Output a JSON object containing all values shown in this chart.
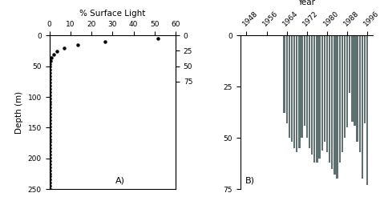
{
  "title_left": "% Surface Light",
  "title_right": "Year",
  "ylabel_left": "Depth (m)",
  "label_A": "A)",
  "label_B": "B)",
  "left_xlim": [
    0,
    60
  ],
  "left_ylim": [
    250,
    0
  ],
  "left_xticks": [
    0,
    10,
    20,
    30,
    40,
    50,
    60
  ],
  "left_yticks": [
    0,
    50,
    100,
    150,
    200,
    250
  ],
  "right_yticks_left": [
    0,
    25,
    50,
    75
  ],
  "bar_color": "#5f7070",
  "years": [
    1963,
    1964,
    1965,
    1966,
    1967,
    1968,
    1969,
    1970,
    1971,
    1972,
    1973,
    1974,
    1975,
    1976,
    1977,
    1978,
    1979,
    1980,
    1981,
    1982,
    1983,
    1984,
    1985,
    1986,
    1987,
    1988,
    1989,
    1990,
    1991,
    1992,
    1993,
    1994,
    1995,
    1996
  ],
  "photic_depths": [
    38,
    43,
    50,
    52,
    55,
    57,
    55,
    50,
    44,
    50,
    55,
    58,
    62,
    62,
    60,
    56,
    52,
    57,
    62,
    65,
    68,
    70,
    62,
    57,
    50,
    45,
    28,
    42,
    44,
    52,
    57,
    70,
    43,
    73
  ],
  "year_xticks": [
    1948,
    1956,
    1964,
    1972,
    1980,
    1988,
    1996
  ],
  "background_color": "#ffffff",
  "extinction_k": 0.13,
  "n_dots": 50
}
